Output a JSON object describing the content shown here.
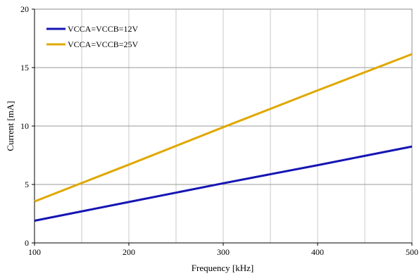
{
  "chart_data": {
    "type": "line",
    "title": "",
    "xlabel": "Frequency [kHz]",
    "ylabel": "Current  [mA]",
    "xlim": [
      100,
      500
    ],
    "ylim": [
      0,
      20
    ],
    "x_ticks": [
      100,
      200,
      300,
      400,
      500
    ],
    "y_ticks": [
      0,
      5,
      10,
      15,
      20
    ],
    "x_tick_labels": [
      "100",
      "200",
      "300",
      "400",
      "500"
    ],
    "y_tick_labels": [
      "0",
      "5",
      "10",
      "15",
      "20"
    ],
    "x_minor_step": 50,
    "grid": true,
    "legend_position": "top-left",
    "series": [
      {
        "name": "VCCA=VCCB=12V",
        "color": "#1515b4",
        "x": [
          100,
          200,
          300,
          400,
          500
        ],
        "values": [
          1.9,
          3.5,
          5.1,
          6.65,
          8.25
        ]
      },
      {
        "name": "VCCA=VCCB=25V",
        "color": "#e0a800",
        "x": [
          100,
          200,
          300,
          400,
          500
        ],
        "values": [
          3.55,
          6.7,
          9.9,
          13.05,
          16.15
        ]
      }
    ]
  }
}
